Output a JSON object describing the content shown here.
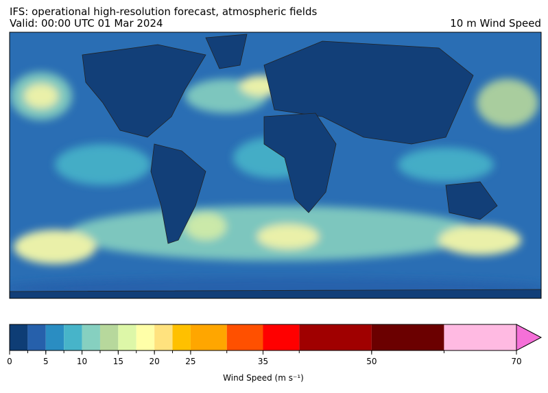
{
  "header": {
    "title": "IFS: operational high-resolution forecast, atmospheric fields",
    "valid": "Valid: 00:00 UTC 01 Mar 2024",
    "field": "10 m Wind Speed"
  },
  "colorbar": {
    "label": "Wind Speed (m s⁻¹)",
    "boundaries": [
      0,
      2.5,
      5,
      7.5,
      10,
      12.5,
      15,
      17.5,
      20,
      22.5,
      25,
      30,
      35,
      40,
      50,
      60,
      70
    ],
    "colors": [
      "#0e3d75",
      "#2660ab",
      "#2a8dc2",
      "#47b4c9",
      "#86d0c0",
      "#b7d89c",
      "#ddf7a8",
      "#ffffa8",
      "#ffe27e",
      "#ffc000",
      "#ffa600",
      "#ff5000",
      "#ff0000",
      "#a00000",
      "#6b0000",
      "#ffbae2"
    ],
    "extend_color": "#f570d8",
    "ticks": [
      0,
      5,
      10,
      15,
      20,
      25,
      35,
      50,
      70
    ]
  }
}
